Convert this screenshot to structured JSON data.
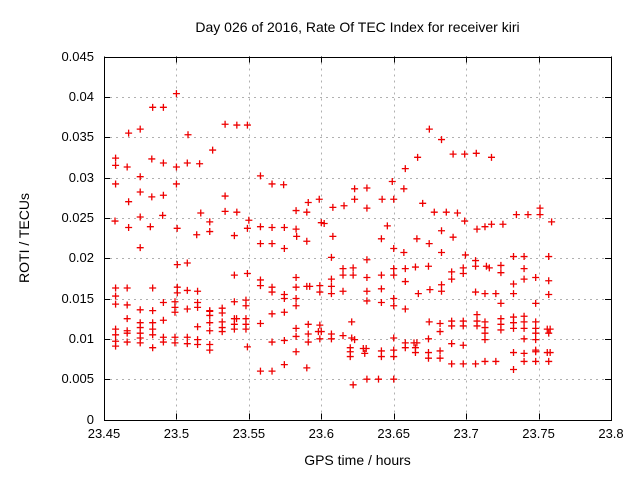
{
  "chart_data": {
    "type": "scatter",
    "title": "Day 026 of 2016, Rate Of TEC Index for receiver kiri",
    "xlabel": "GPS time / hours",
    "ylabel": "ROTI / TECUs",
    "xlim": [
      23.45,
      23.8
    ],
    "ylim": [
      0,
      0.045
    ],
    "xtick_values": [
      23.45,
      23.5,
      23.55,
      23.6,
      23.65,
      23.7,
      23.75,
      23.8
    ],
    "xtick_labels": [
      "23.45",
      "23.5",
      "23.55",
      "23.6",
      "23.65",
      "23.7",
      "23.75",
      "23.8"
    ],
    "ytick_values": [
      0,
      0.005,
      0.01,
      0.015,
      0.02,
      0.025,
      0.03,
      0.035,
      0.04,
      0.045
    ],
    "ytick_labels": [
      "0",
      "0.005",
      "0.01",
      "0.015",
      "0.02",
      "0.025",
      "0.03",
      "0.035",
      "0.04",
      "0.045"
    ],
    "grid": true,
    "legend": "none",
    "marker": "plus",
    "marker_color": "#ee0000",
    "grid_color": "#b0b0b0",
    "border_color": "#000000",
    "series_name": "ROTI",
    "points": [
      [
        23.5,
        0.0404
      ],
      [
        23.4836,
        0.0387
      ],
      [
        23.491,
        0.0387
      ],
      [
        23.5336,
        0.0366
      ],
      [
        23.5417,
        0.0365
      ],
      [
        23.549,
        0.0365
      ],
      [
        23.475,
        0.036
      ],
      [
        23.467,
        0.0355
      ],
      [
        23.508,
        0.0353
      ],
      [
        23.525,
        0.0334
      ],
      [
        23.458,
        0.0324
      ],
      [
        23.483,
        0.0323
      ],
      [
        23.491,
        0.0318
      ],
      [
        23.5075,
        0.0318
      ],
      [
        23.516,
        0.0317
      ],
      [
        23.458,
        0.0315
      ],
      [
        23.466,
        0.0313
      ],
      [
        23.5,
        0.0313
      ],
      [
        23.475,
        0.0301
      ],
      [
        23.458,
        0.0292
      ],
      [
        23.5,
        0.0292
      ],
      [
        23.475,
        0.0282
      ],
      [
        23.491,
        0.0278
      ],
      [
        23.483,
        0.0276
      ],
      [
        23.467,
        0.027
      ],
      [
        23.5336,
        0.0277
      ],
      [
        23.558,
        0.0302
      ],
      [
        23.566,
        0.0292
      ],
      [
        23.574,
        0.0291
      ],
      [
        23.5986,
        0.0273
      ],
      [
        23.591,
        0.0269
      ],
      [
        23.5826,
        0.0259
      ],
      [
        23.59,
        0.0257
      ],
      [
        23.608,
        0.0263
      ],
      [
        23.6157,
        0.0265
      ],
      [
        23.5336,
        0.0258
      ],
      [
        23.5417,
        0.0257
      ],
      [
        23.55,
        0.0247
      ],
      [
        23.5168,
        0.0256
      ],
      [
        23.523,
        0.0245
      ],
      [
        23.475,
        0.0251
      ],
      [
        23.4576,
        0.0246
      ],
      [
        23.4905,
        0.0253
      ],
      [
        23.482,
        0.0239
      ],
      [
        23.467,
        0.0238
      ],
      [
        23.5005,
        0.0237
      ],
      [
        23.6,
        0.0244
      ],
      [
        23.602,
        0.0243
      ],
      [
        23.549,
        0.0237
      ],
      [
        23.558,
        0.0239
      ],
      [
        23.566,
        0.0238
      ],
      [
        23.5745,
        0.0238
      ],
      [
        23.5826,
        0.0236
      ],
      [
        23.54,
        0.0228
      ],
      [
        23.514,
        0.0229
      ],
      [
        23.523,
        0.0233
      ],
      [
        23.6746,
        0.036
      ],
      [
        23.683,
        0.0347
      ],
      [
        23.691,
        0.0329
      ],
      [
        23.699,
        0.0329
      ],
      [
        23.707,
        0.033
      ],
      [
        23.7175,
        0.0325
      ],
      [
        23.6665,
        0.0325
      ],
      [
        23.658,
        0.0311
      ],
      [
        23.649,
        0.0295
      ],
      [
        23.657,
        0.0286
      ],
      [
        23.623,
        0.0286
      ],
      [
        23.6315,
        0.0287
      ],
      [
        23.623,
        0.0273
      ],
      [
        23.642,
        0.0273
      ],
      [
        23.65,
        0.0273
      ],
      [
        23.67,
        0.0268
      ],
      [
        23.6315,
        0.0262
      ],
      [
        23.678,
        0.0257
      ],
      [
        23.6863,
        0.0257
      ],
      [
        23.694,
        0.0256
      ],
      [
        23.699,
        0.0246
      ],
      [
        23.6456,
        0.024
      ],
      [
        23.683,
        0.0234
      ],
      [
        23.751,
        0.0262
      ],
      [
        23.751,
        0.0254
      ],
      [
        23.7347,
        0.0254
      ],
      [
        23.7427,
        0.0254
      ],
      [
        23.759,
        0.0245
      ],
      [
        23.7175,
        0.0242
      ],
      [
        23.7254,
        0.0242
      ],
      [
        23.713,
        0.0239
      ],
      [
        23.7075,
        0.0236
      ],
      [
        23.691,
        0.0226
      ],
      [
        23.475,
        0.0213
      ],
      [
        23.5006,
        0.0192
      ],
      [
        23.5075,
        0.0194
      ],
      [
        23.5006,
        0.0164
      ],
      [
        23.5006,
        0.0157
      ],
      [
        23.5075,
        0.016
      ],
      [
        23.458,
        0.0163
      ],
      [
        23.466,
        0.0163
      ],
      [
        23.4836,
        0.0163
      ],
      [
        23.5146,
        0.0159
      ],
      [
        23.458,
        0.0153
      ],
      [
        23.458,
        0.0143
      ],
      [
        23.466,
        0.0142
      ],
      [
        23.5146,
        0.0145
      ],
      [
        23.5146,
        0.0139
      ],
      [
        23.491,
        0.0145
      ],
      [
        23.499,
        0.0146
      ],
      [
        23.499,
        0.0139
      ],
      [
        23.499,
        0.0133
      ],
      [
        23.475,
        0.0136
      ],
      [
        23.4836,
        0.0135
      ],
      [
        23.5075,
        0.0137
      ],
      [
        23.558,
        0.0218
      ],
      [
        23.566,
        0.0218
      ],
      [
        23.5745,
        0.0212
      ],
      [
        23.583,
        0.0227
      ],
      [
        23.59,
        0.0221
      ],
      [
        23.608,
        0.0227
      ],
      [
        23.607,
        0.0201
      ],
      [
        23.549,
        0.0181
      ],
      [
        23.54,
        0.0179
      ],
      [
        23.558,
        0.0173
      ],
      [
        23.558,
        0.0166
      ],
      [
        23.566,
        0.0164
      ],
      [
        23.566,
        0.0158
      ],
      [
        23.5745,
        0.0155
      ],
      [
        23.5745,
        0.015
      ],
      [
        23.5826,
        0.0176
      ],
      [
        23.5826,
        0.0164
      ],
      [
        23.5826,
        0.015
      ],
      [
        23.5826,
        0.0141
      ],
      [
        23.59,
        0.0165
      ],
      [
        23.592,
        0.0165
      ],
      [
        23.599,
        0.0166
      ],
      [
        23.599,
        0.0158
      ],
      [
        23.607,
        0.0174
      ],
      [
        23.607,
        0.0165
      ],
      [
        23.607,
        0.0156
      ],
      [
        23.615,
        0.0187
      ],
      [
        23.615,
        0.0179
      ],
      [
        23.615,
        0.0159
      ],
      [
        23.548,
        0.0148
      ],
      [
        23.548,
        0.0141
      ],
      [
        23.54,
        0.0146
      ],
      [
        23.6415,
        0.0224
      ],
      [
        23.65,
        0.0212
      ],
      [
        23.657,
        0.0207
      ],
      [
        23.666,
        0.0224
      ],
      [
        23.6745,
        0.0218
      ],
      [
        23.683,
        0.0207
      ],
      [
        23.6995,
        0.0204
      ],
      [
        23.6315,
        0.0198
      ],
      [
        23.622,
        0.0188
      ],
      [
        23.622,
        0.0179
      ],
      [
        23.6315,
        0.0176
      ],
      [
        23.6415,
        0.0179
      ],
      [
        23.65,
        0.0187
      ],
      [
        23.65,
        0.0179
      ],
      [
        23.658,
        0.0187
      ],
      [
        23.658,
        0.0171
      ],
      [
        23.665,
        0.0189
      ],
      [
        23.674,
        0.019
      ],
      [
        23.69,
        0.0183
      ],
      [
        23.69,
        0.0174
      ],
      [
        23.698,
        0.0188
      ],
      [
        23.698,
        0.0181
      ],
      [
        23.7065,
        0.0197
      ],
      [
        23.7065,
        0.019
      ],
      [
        23.6415,
        0.0162
      ],
      [
        23.6315,
        0.0159
      ],
      [
        23.6315,
        0.0147
      ],
      [
        23.6415,
        0.0145
      ],
      [
        23.65,
        0.015
      ],
      [
        23.65,
        0.0141
      ],
      [
        23.658,
        0.0137
      ],
      [
        23.667,
        0.0156
      ],
      [
        23.675,
        0.0161
      ],
      [
        23.683,
        0.0167
      ],
      [
        23.683,
        0.0159
      ],
      [
        23.7065,
        0.0158
      ],
      [
        23.7327,
        0.0202
      ],
      [
        23.74,
        0.0202
      ],
      [
        23.757,
        0.0202
      ],
      [
        23.714,
        0.019
      ],
      [
        23.716,
        0.0188
      ],
      [
        23.724,
        0.0191
      ],
      [
        23.724,
        0.0182
      ],
      [
        23.74,
        0.0187
      ],
      [
        23.74,
        0.0174
      ],
      [
        23.748,
        0.0176
      ],
      [
        23.7327,
        0.0168
      ],
      [
        23.757,
        0.0172
      ],
      [
        23.713,
        0.0156
      ],
      [
        23.7205,
        0.0156
      ],
      [
        23.7327,
        0.0156
      ],
      [
        23.757,
        0.0155
      ],
      [
        23.724,
        0.0144
      ],
      [
        23.748,
        0.0144
      ],
      [
        23.458,
        0.0112
      ],
      [
        23.458,
        0.0105
      ],
      [
        23.458,
        0.0097
      ],
      [
        23.458,
        0.0091
      ],
      [
        23.466,
        0.0125
      ],
      [
        23.466,
        0.011
      ],
      [
        23.466,
        0.0107
      ],
      [
        23.466,
        0.0096
      ],
      [
        23.475,
        0.012
      ],
      [
        23.475,
        0.0114
      ],
      [
        23.475,
        0.0107
      ],
      [
        23.475,
        0.0101
      ],
      [
        23.475,
        0.0095
      ],
      [
        23.4836,
        0.012
      ],
      [
        23.4836,
        0.0112
      ],
      [
        23.4836,
        0.0105
      ],
      [
        23.4836,
        0.0089
      ],
      [
        23.491,
        0.0123
      ],
      [
        23.491,
        0.0102
      ],
      [
        23.491,
        0.0096
      ],
      [
        23.499,
        0.0102
      ],
      [
        23.499,
        0.0095
      ],
      [
        23.5075,
        0.0102
      ],
      [
        23.5075,
        0.0094
      ],
      [
        23.5146,
        0.0115
      ],
      [
        23.5146,
        0.0099
      ],
      [
        23.5146,
        0.0093
      ],
      [
        23.523,
        0.0135
      ],
      [
        23.523,
        0.0134
      ],
      [
        23.523,
        0.0129
      ],
      [
        23.523,
        0.012
      ],
      [
        23.523,
        0.011
      ],
      [
        23.523,
        0.0093
      ],
      [
        23.523,
        0.0086
      ],
      [
        23.5316,
        0.0138
      ],
      [
        23.5316,
        0.0132
      ],
      [
        23.5316,
        0.0121
      ],
      [
        23.5316,
        0.0114
      ],
      [
        23.5316,
        0.0109
      ],
      [
        23.54,
        0.0125
      ],
      [
        23.5415,
        0.0125
      ],
      [
        23.54,
        0.0118
      ],
      [
        23.54,
        0.0112
      ],
      [
        23.548,
        0.0125
      ],
      [
        23.548,
        0.0118
      ],
      [
        23.548,
        0.0112
      ],
      [
        23.549,
        0.009
      ],
      [
        23.558,
        0.0119
      ],
      [
        23.566,
        0.0131
      ],
      [
        23.5745,
        0.0133
      ],
      [
        23.566,
        0.0096
      ],
      [
        23.5745,
        0.0098
      ],
      [
        23.5826,
        0.0113
      ],
      [
        23.5826,
        0.0103
      ],
      [
        23.5826,
        0.0084
      ],
      [
        23.591,
        0.0118
      ],
      [
        23.591,
        0.0106
      ],
      [
        23.591,
        0.0096
      ],
      [
        23.599,
        0.0117
      ],
      [
        23.598,
        0.0109
      ],
      [
        23.6,
        0.0109
      ],
      [
        23.599,
        0.01
      ],
      [
        23.607,
        0.0106
      ],
      [
        23.607,
        0.01
      ],
      [
        23.615,
        0.0104
      ],
      [
        23.5745,
        0.0068
      ],
      [
        23.59,
        0.0064
      ],
      [
        23.558,
        0.006
      ],
      [
        23.566,
        0.006
      ],
      [
        23.621,
        0.0121
      ],
      [
        23.6745,
        0.0121
      ],
      [
        23.682,
        0.0119
      ],
      [
        23.682,
        0.0109
      ],
      [
        23.69,
        0.0122
      ],
      [
        23.69,
        0.0116
      ],
      [
        23.698,
        0.0122
      ],
      [
        23.698,
        0.0116
      ],
      [
        23.7075,
        0.013
      ],
      [
        23.7075,
        0.0122
      ],
      [
        23.7075,
        0.0116
      ],
      [
        23.621,
        0.0101
      ],
      [
        23.623,
        0.0099
      ],
      [
        23.62,
        0.0089
      ],
      [
        23.62,
        0.0084
      ],
      [
        23.62,
        0.0078
      ],
      [
        23.629,
        0.0088
      ],
      [
        23.631,
        0.0088
      ],
      [
        23.63,
        0.0082
      ],
      [
        23.6415,
        0.0085
      ],
      [
        23.6415,
        0.0078
      ],
      [
        23.65,
        0.0101
      ],
      [
        23.65,
        0.0086
      ],
      [
        23.65,
        0.0078
      ],
      [
        23.658,
        0.0095
      ],
      [
        23.658,
        0.0089
      ],
      [
        23.664,
        0.0095
      ],
      [
        23.666,
        0.0095
      ],
      [
        23.665,
        0.0089
      ],
      [
        23.665,
        0.0083
      ],
      [
        23.674,
        0.01
      ],
      [
        23.674,
        0.0083
      ],
      [
        23.674,
        0.0076
      ],
      [
        23.682,
        0.0085
      ],
      [
        23.682,
        0.0076
      ],
      [
        23.69,
        0.0094
      ],
      [
        23.69,
        0.0069
      ],
      [
        23.698,
        0.0092
      ],
      [
        23.698,
        0.0069
      ],
      [
        23.7065,
        0.0069
      ],
      [
        23.622,
        0.0043
      ],
      [
        23.6315,
        0.005
      ],
      [
        23.6395,
        0.005
      ],
      [
        23.65,
        0.005
      ],
      [
        23.713,
        0.0121
      ],
      [
        23.713,
        0.0114
      ],
      [
        23.713,
        0.0107
      ],
      [
        23.724,
        0.0125
      ],
      [
        23.724,
        0.0118
      ],
      [
        23.724,
        0.0111
      ],
      [
        23.7327,
        0.0127
      ],
      [
        23.7327,
        0.012
      ],
      [
        23.7327,
        0.0113
      ],
      [
        23.74,
        0.0128
      ],
      [
        23.74,
        0.0121
      ],
      [
        23.74,
        0.0113
      ],
      [
        23.74,
        0.01
      ],
      [
        23.748,
        0.0121
      ],
      [
        23.748,
        0.0113
      ],
      [
        23.748,
        0.0107
      ],
      [
        23.748,
        0.0099
      ],
      [
        23.756,
        0.0112
      ],
      [
        23.758,
        0.0112
      ],
      [
        23.757,
        0.0107
      ],
      [
        23.713,
        0.0099
      ],
      [
        23.7327,
        0.0083
      ],
      [
        23.74,
        0.0082
      ],
      [
        23.748,
        0.0086
      ],
      [
        23.748,
        0.0084
      ],
      [
        23.756,
        0.0083
      ],
      [
        23.758,
        0.0083
      ],
      [
        23.713,
        0.0072
      ],
      [
        23.7205,
        0.0072
      ],
      [
        23.74,
        0.0072
      ],
      [
        23.748,
        0.0072
      ],
      [
        23.757,
        0.0072
      ],
      [
        23.7327,
        0.0062
      ]
    ]
  }
}
